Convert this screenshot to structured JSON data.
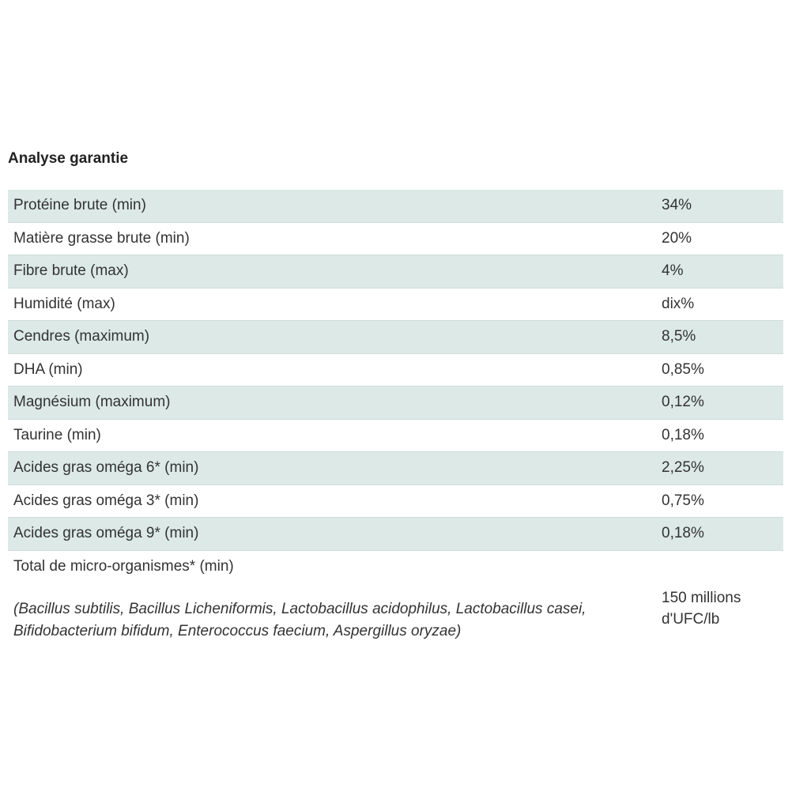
{
  "title": "Analyse garantie",
  "rows": [
    {
      "label": "Protéine brute (min)",
      "value": "34%"
    },
    {
      "label": "Matière grasse brute (min)",
      "value": "20%"
    },
    {
      "label": "Fibre brute (max)",
      "value": "4%"
    },
    {
      "label": "Humidité (max)",
      "value": "dix%"
    },
    {
      "label": "Cendres (maximum)",
      "value": "8,5%"
    },
    {
      "label": "DHA (min)",
      "value": "0,85%"
    },
    {
      "label": "Magnésium (maximum)",
      "value": "0,12%"
    },
    {
      "label": "Taurine (min)",
      "value": "0,18%"
    },
    {
      "label": "Acides gras oméga 6* (min)",
      "value": "2,25%"
    },
    {
      "label": "Acides gras oméga 3* (min)",
      "value": "0,75%"
    },
    {
      "label": "Acides gras oméga 9* (min)",
      "value": "0,18%"
    }
  ],
  "micro": {
    "label": "Total de micro-organismes* (min)",
    "detail": "(Bacillus subtilis, Bacillus Licheniformis, Lactobacillus acidophilus, Lactobacillus casei, Bifidobacterium bifidum, Enterococcus faecium, Aspergillus oryzae)",
    "value": "150 millions d'UFC/lb"
  }
}
